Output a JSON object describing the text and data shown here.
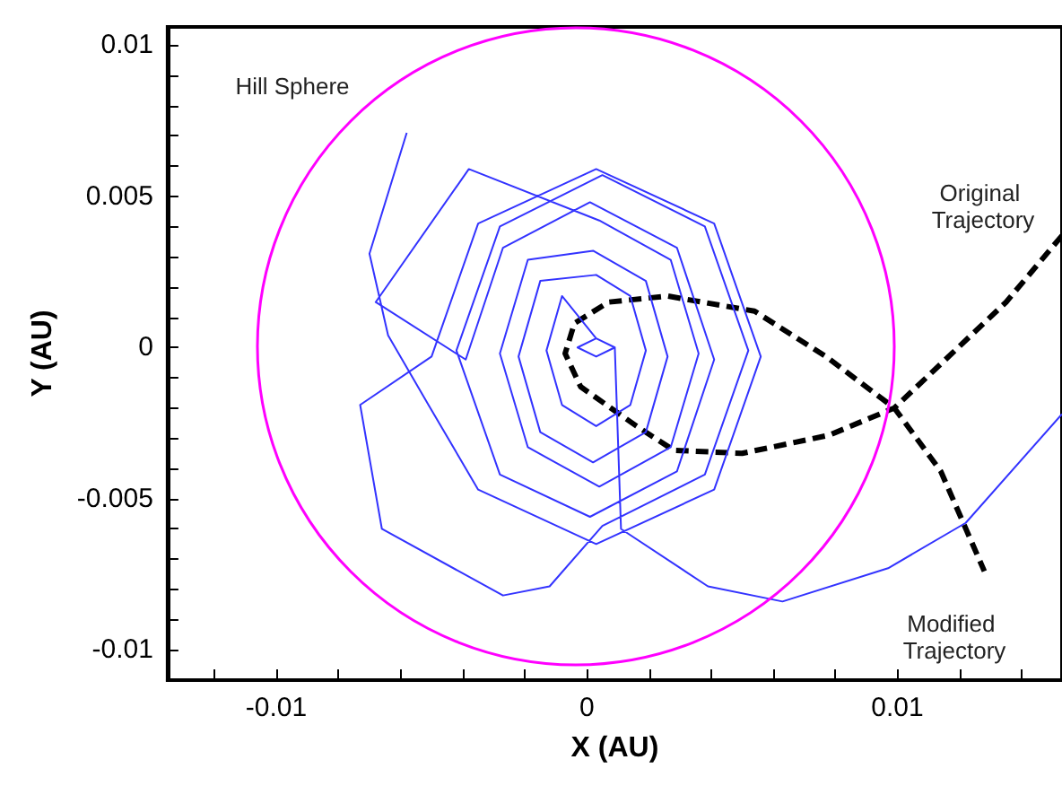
{
  "chart_data": {
    "type": "line",
    "xlabel": "X (AU)",
    "ylabel": "Y (AU)",
    "xlim": [
      -0.0135,
      0.0153
    ],
    "ylim": [
      -0.011,
      0.0106
    ],
    "xticks": [
      {
        "value": -0.012,
        "label": null
      },
      -0.01,
      {
        "value": -0.008,
        "label": null
      },
      {
        "value": -0.006,
        "label": null
      },
      {
        "value": -0.004,
        "label": null
      },
      {
        "value": -0.002,
        "label": null
      },
      0,
      {
        "value": 0.002,
        "label": null
      },
      {
        "value": 0.004,
        "label": null
      },
      {
        "value": 0.006,
        "label": null
      },
      {
        "value": 0.008,
        "label": null
      },
      0.01,
      {
        "value": 0.012,
        "label": null
      },
      {
        "value": 0.014,
        "label": null
      }
    ],
    "yticks": [
      -0.01,
      {
        "value": -0.009,
        "label": null
      },
      {
        "value": -0.008,
        "label": null
      },
      {
        "value": -0.007,
        "label": null
      },
      {
        "value": -0.006,
        "label": null
      },
      -0.005,
      {
        "value": -0.004,
        "label": null
      },
      {
        "value": -0.003,
        "label": null
      },
      {
        "value": -0.002,
        "label": null
      },
      {
        "value": -0.001,
        "label": null
      },
      0,
      {
        "value": 0.001,
        "label": null
      },
      {
        "value": 0.002,
        "label": null
      },
      {
        "value": 0.003,
        "label": null
      },
      {
        "value": 0.004,
        "label": null
      },
      0.005,
      {
        "value": 0.006,
        "label": null
      },
      {
        "value": 0.007,
        "label": null
      },
      {
        "value": 0.008,
        "label": null
      },
      {
        "value": 0.009,
        "label": null
      },
      0.01
    ],
    "grid": false,
    "marker": "none",
    "series": [
      {
        "color": "#000000",
        "line_style": "dashed",
        "x": [
          0.0153,
          0.0135,
          0.0099,
          0.0078,
          0.005,
          0.0028,
          0.0016,
          -0.0002,
          -0.0007,
          -0.0004,
          0.0007,
          0.0026,
          0.0054,
          0.0077,
          0.0099,
          0.0114,
          0.0128
        ],
        "values": [
          0.0037,
          0.0015,
          -0.002,
          -0.0029,
          -0.0035,
          -0.0034,
          -0.0026,
          -0.0013,
          -0.0002,
          0.0008,
          0.0015,
          0.0017,
          0.0012,
          -0.0003,
          -0.002,
          -0.0041,
          -0.0074
        ]
      },
      {
        "color": "#3333ff",
        "line_style": "solid",
        "x": [
          -0.0058,
          -0.007,
          -0.0064,
          -0.0051,
          -0.0035,
          0.0003,
          0.0041,
          0.0056,
          0.0041,
          0.0003,
          -0.0035,
          -0.005,
          -0.0073,
          -0.0066,
          -0.0027,
          -0.0012,
          0.0005,
          0.0038,
          0.0052,
          0.0038,
          0.0005,
          -0.0028,
          -0.0042,
          -0.0028,
          0.0001,
          0.0029,
          0.0041,
          0.0029,
          0.0001,
          -0.0027,
          -0.0039,
          -0.0068,
          -0.0038,
          0.0004,
          0.0027,
          0.0036,
          0.0027,
          0.0004,
          -0.0019,
          -0.0028,
          -0.0019,
          0.0002,
          0.0019,
          0.0026,
          0.0019,
          0.0002,
          -0.0015,
          -0.0022,
          -0.0015,
          0.0003,
          0.0014,
          0.0019,
          0.0014,
          0.0003,
          -0.0008,
          -0.0013,
          -0.0008,
          0.0003,
          0.0009,
          0.0003,
          -0.0003,
          0.0003,
          0.0009,
          0.0011,
          0.0039,
          0.0063,
          0.0097,
          0.0122,
          0.0153
        ],
        "values": [
          0.0071,
          0.0031,
          0.0004,
          -0.0019,
          -0.0047,
          -0.0065,
          -0.0047,
          -0.0003,
          0.0041,
          0.0059,
          0.0041,
          -0.0003,
          -0.0019,
          -0.006,
          -0.0082,
          -0.0079,
          -0.0059,
          -0.0042,
          -0.0001,
          0.004,
          0.0057,
          0.004,
          -0.0001,
          -0.0042,
          -0.0056,
          -0.0041,
          -0.0004,
          0.0033,
          0.0048,
          0.0033,
          -0.0004,
          0.0015,
          0.0059,
          0.0042,
          0.0029,
          -0.0002,
          -0.0033,
          -0.0046,
          -0.0033,
          -0.0002,
          0.0029,
          0.0032,
          0.0022,
          -0.0003,
          -0.0028,
          -0.0038,
          -0.0028,
          -0.0003,
          0.0022,
          0.0024,
          0.0017,
          -0.0001,
          -0.0019,
          -0.0026,
          -0.0019,
          -0.0001,
          0.0017,
          0.0003,
          0,
          -0.0003,
          0,
          0.0003,
          0,
          -0.006,
          -0.0079,
          -0.0084,
          -0.0073,
          -0.0058,
          -0.0022
        ]
      }
    ],
    "annotations": [
      "Hill Sphere",
      "Original Trajectory",
      "Modified Trajectory"
    ]
  }
}
